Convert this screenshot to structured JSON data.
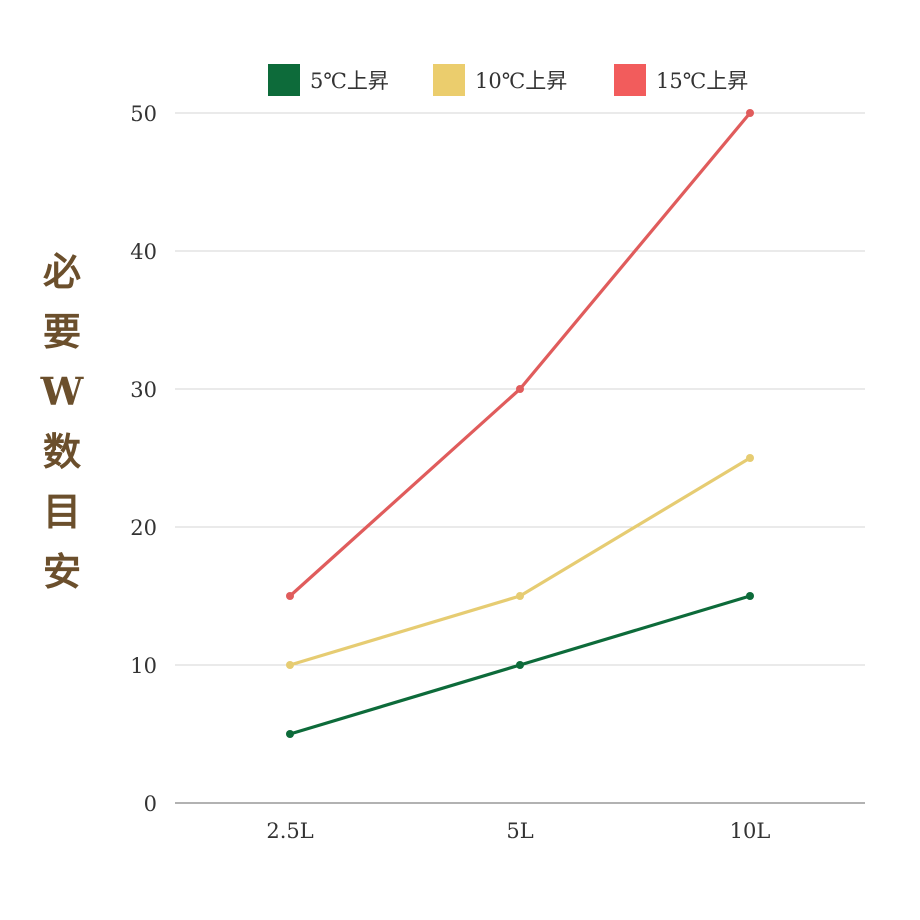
{
  "chart_data": {
    "type": "line",
    "title": "",
    "xlabel": "",
    "ylabel": "必要W数目安",
    "categories": [
      "2.5L",
      "5L",
      "10L"
    ],
    "ylim": [
      0,
      50
    ],
    "yticks": [
      0,
      10,
      20,
      30,
      40,
      50
    ],
    "grid": true,
    "legend_position": "top",
    "series": [
      {
        "name": "5℃上昇",
        "color": "#0d6b3a",
        "values": [
          5,
          10,
          15
        ]
      },
      {
        "name": "10℃上昇",
        "color": "#e6cc72",
        "values": [
          10,
          15,
          25
        ]
      },
      {
        "name": "15℃上昇",
        "color": "#e05c5c",
        "values": [
          15,
          30,
          50
        ]
      }
    ],
    "legend_swatch_colors": [
      "#0d6b3a",
      "#ebcd6d",
      "#f25c5c"
    ]
  }
}
